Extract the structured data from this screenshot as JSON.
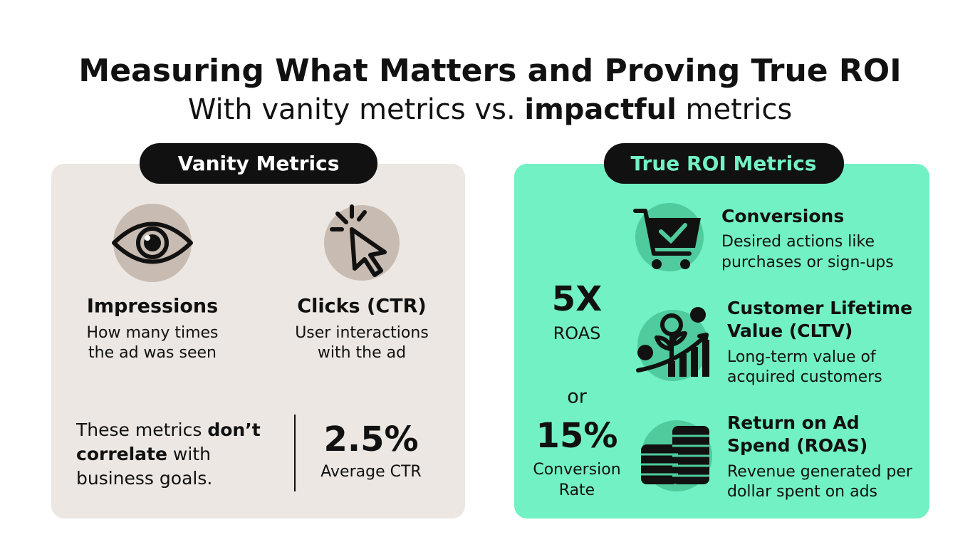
{
  "header": {
    "title": "Measuring What Matters and Proving True ROI",
    "subtitle": [
      "With vanity metrics vs.",
      "impactful",
      "metrics"
    ]
  },
  "vanity": {
    "label": "Vanity Metrics",
    "items": [
      {
        "title": "Impressions",
        "description": [
          "How many times",
          "the ad was seen"
        ]
      },
      {
        "title": "Clicks (CTR)",
        "description": [
          "User interactions",
          "with the ad"
        ]
      }
    ],
    "note": [
      "These metrics",
      "don’t",
      "correlate",
      "with",
      "business goals."
    ],
    "stat": {
      "value": "2.5%",
      "label": "Average CTR"
    }
  },
  "roi": {
    "label": "True ROI Metrics",
    "stats": [
      {
        "value": "5X",
        "label": [
          "ROAS"
        ]
      },
      {
        "value": "15%",
        "label": [
          "Conversion",
          "Rate"
        ]
      }
    ],
    "separator": "or",
    "items": [
      {
        "title": [
          "Conversions"
        ],
        "description": [
          "Desired actions like",
          "purchases or sign-ups"
        ]
      },
      {
        "title": [
          "Customer Lifetime",
          "Value (CLTV)"
        ],
        "description": [
          "Long-term value of",
          "acquired customers"
        ]
      },
      {
        "title": [
          "Return on Ad",
          "Spend (ROAS)"
        ],
        "description": [
          "Revenue generated per",
          "dollar spent on ads"
        ]
      }
    ]
  }
}
